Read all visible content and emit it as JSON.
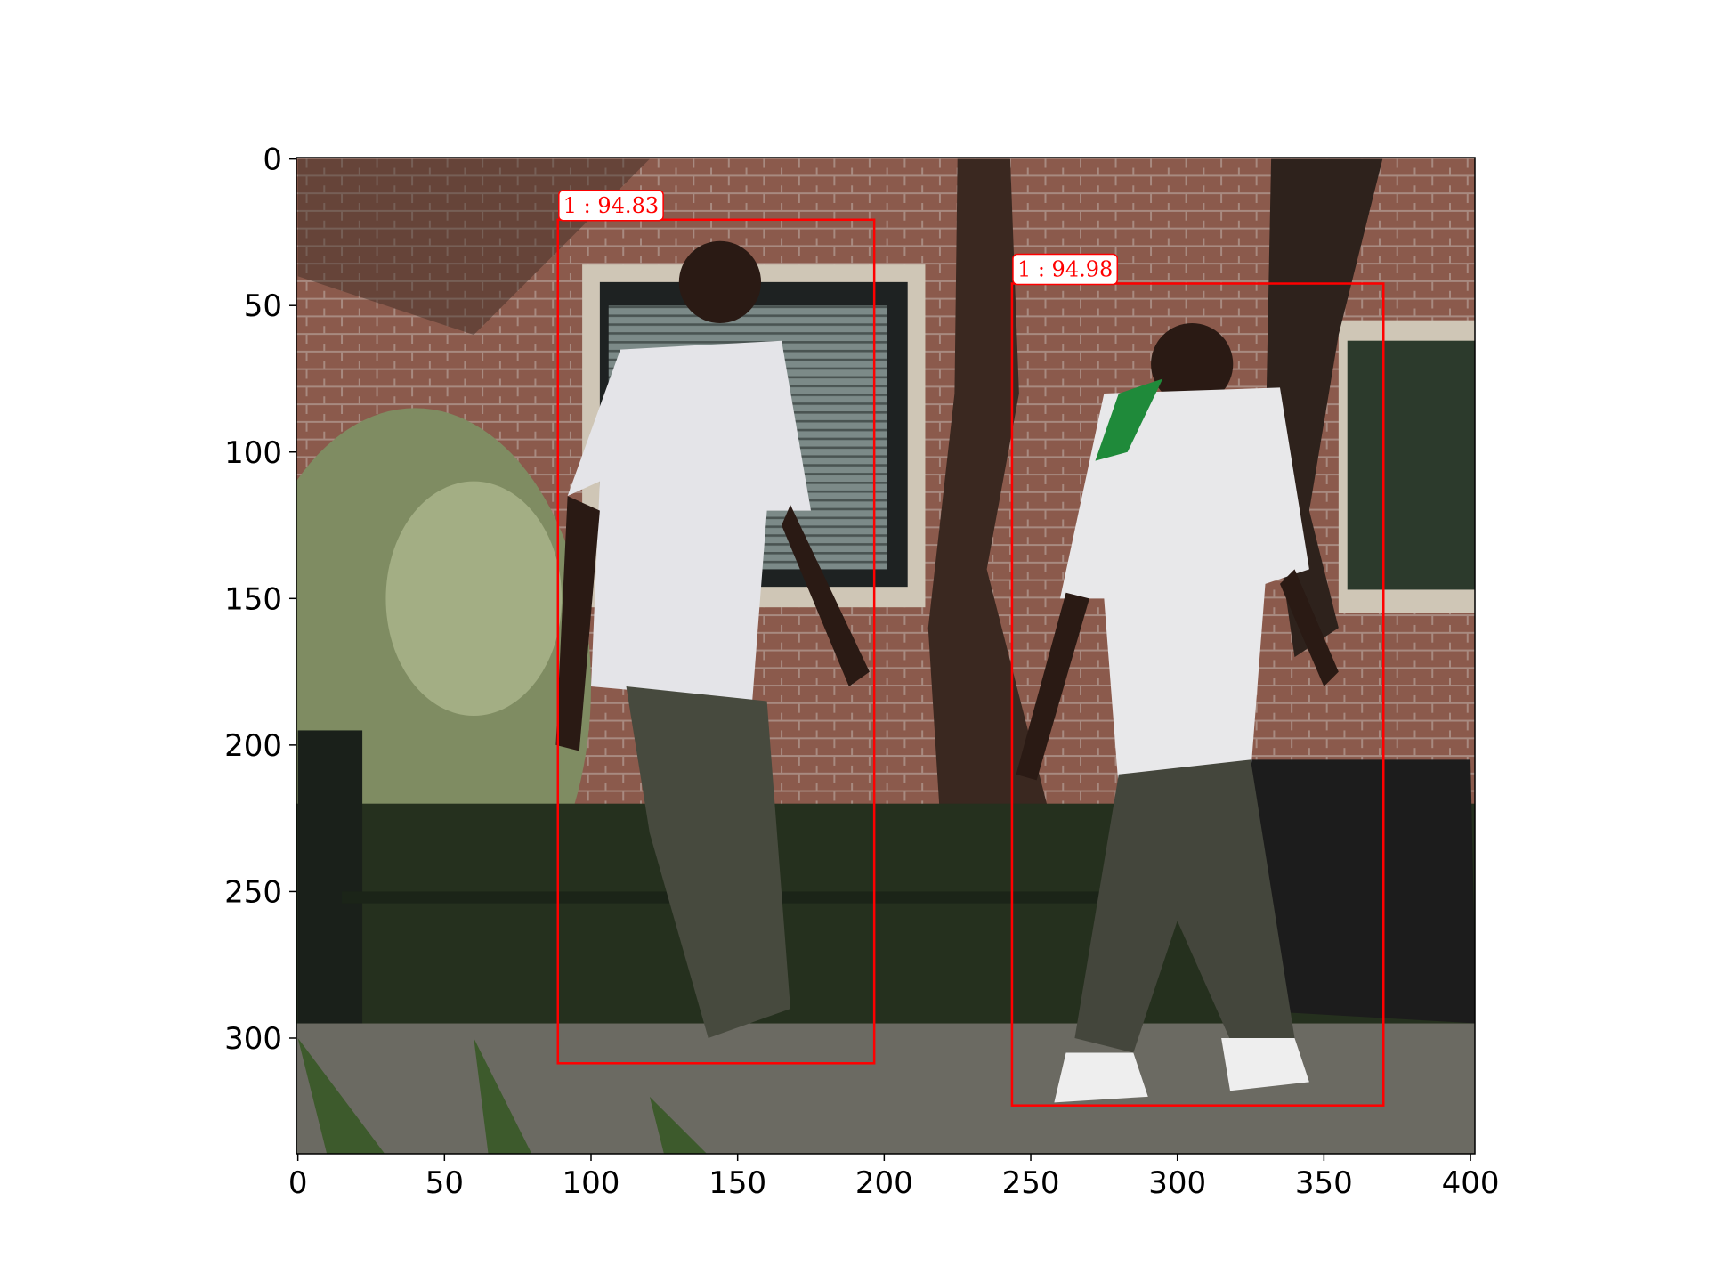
{
  "chart_data": {
    "type": "image",
    "xlim": [
      -0.5,
      401.5
    ],
    "ylim": [
      339.5,
      -0.5
    ],
    "xticks": [
      0,
      50,
      100,
      150,
      200,
      250,
      300,
      350,
      400
    ],
    "yticks": [
      0,
      50,
      100,
      150,
      200,
      250,
      300
    ],
    "color": "#ff0000",
    "boxes": [
      {
        "label": "1 : 94.83",
        "x0": 88.7,
        "y0": 20.7,
        "x1": 196.6,
        "y1": 308.6
      },
      {
        "label": "1 : 94.98",
        "x0": 243.6,
        "y0": 42.5,
        "x1": 370.3,
        "y1": 323.0
      }
    ]
  }
}
